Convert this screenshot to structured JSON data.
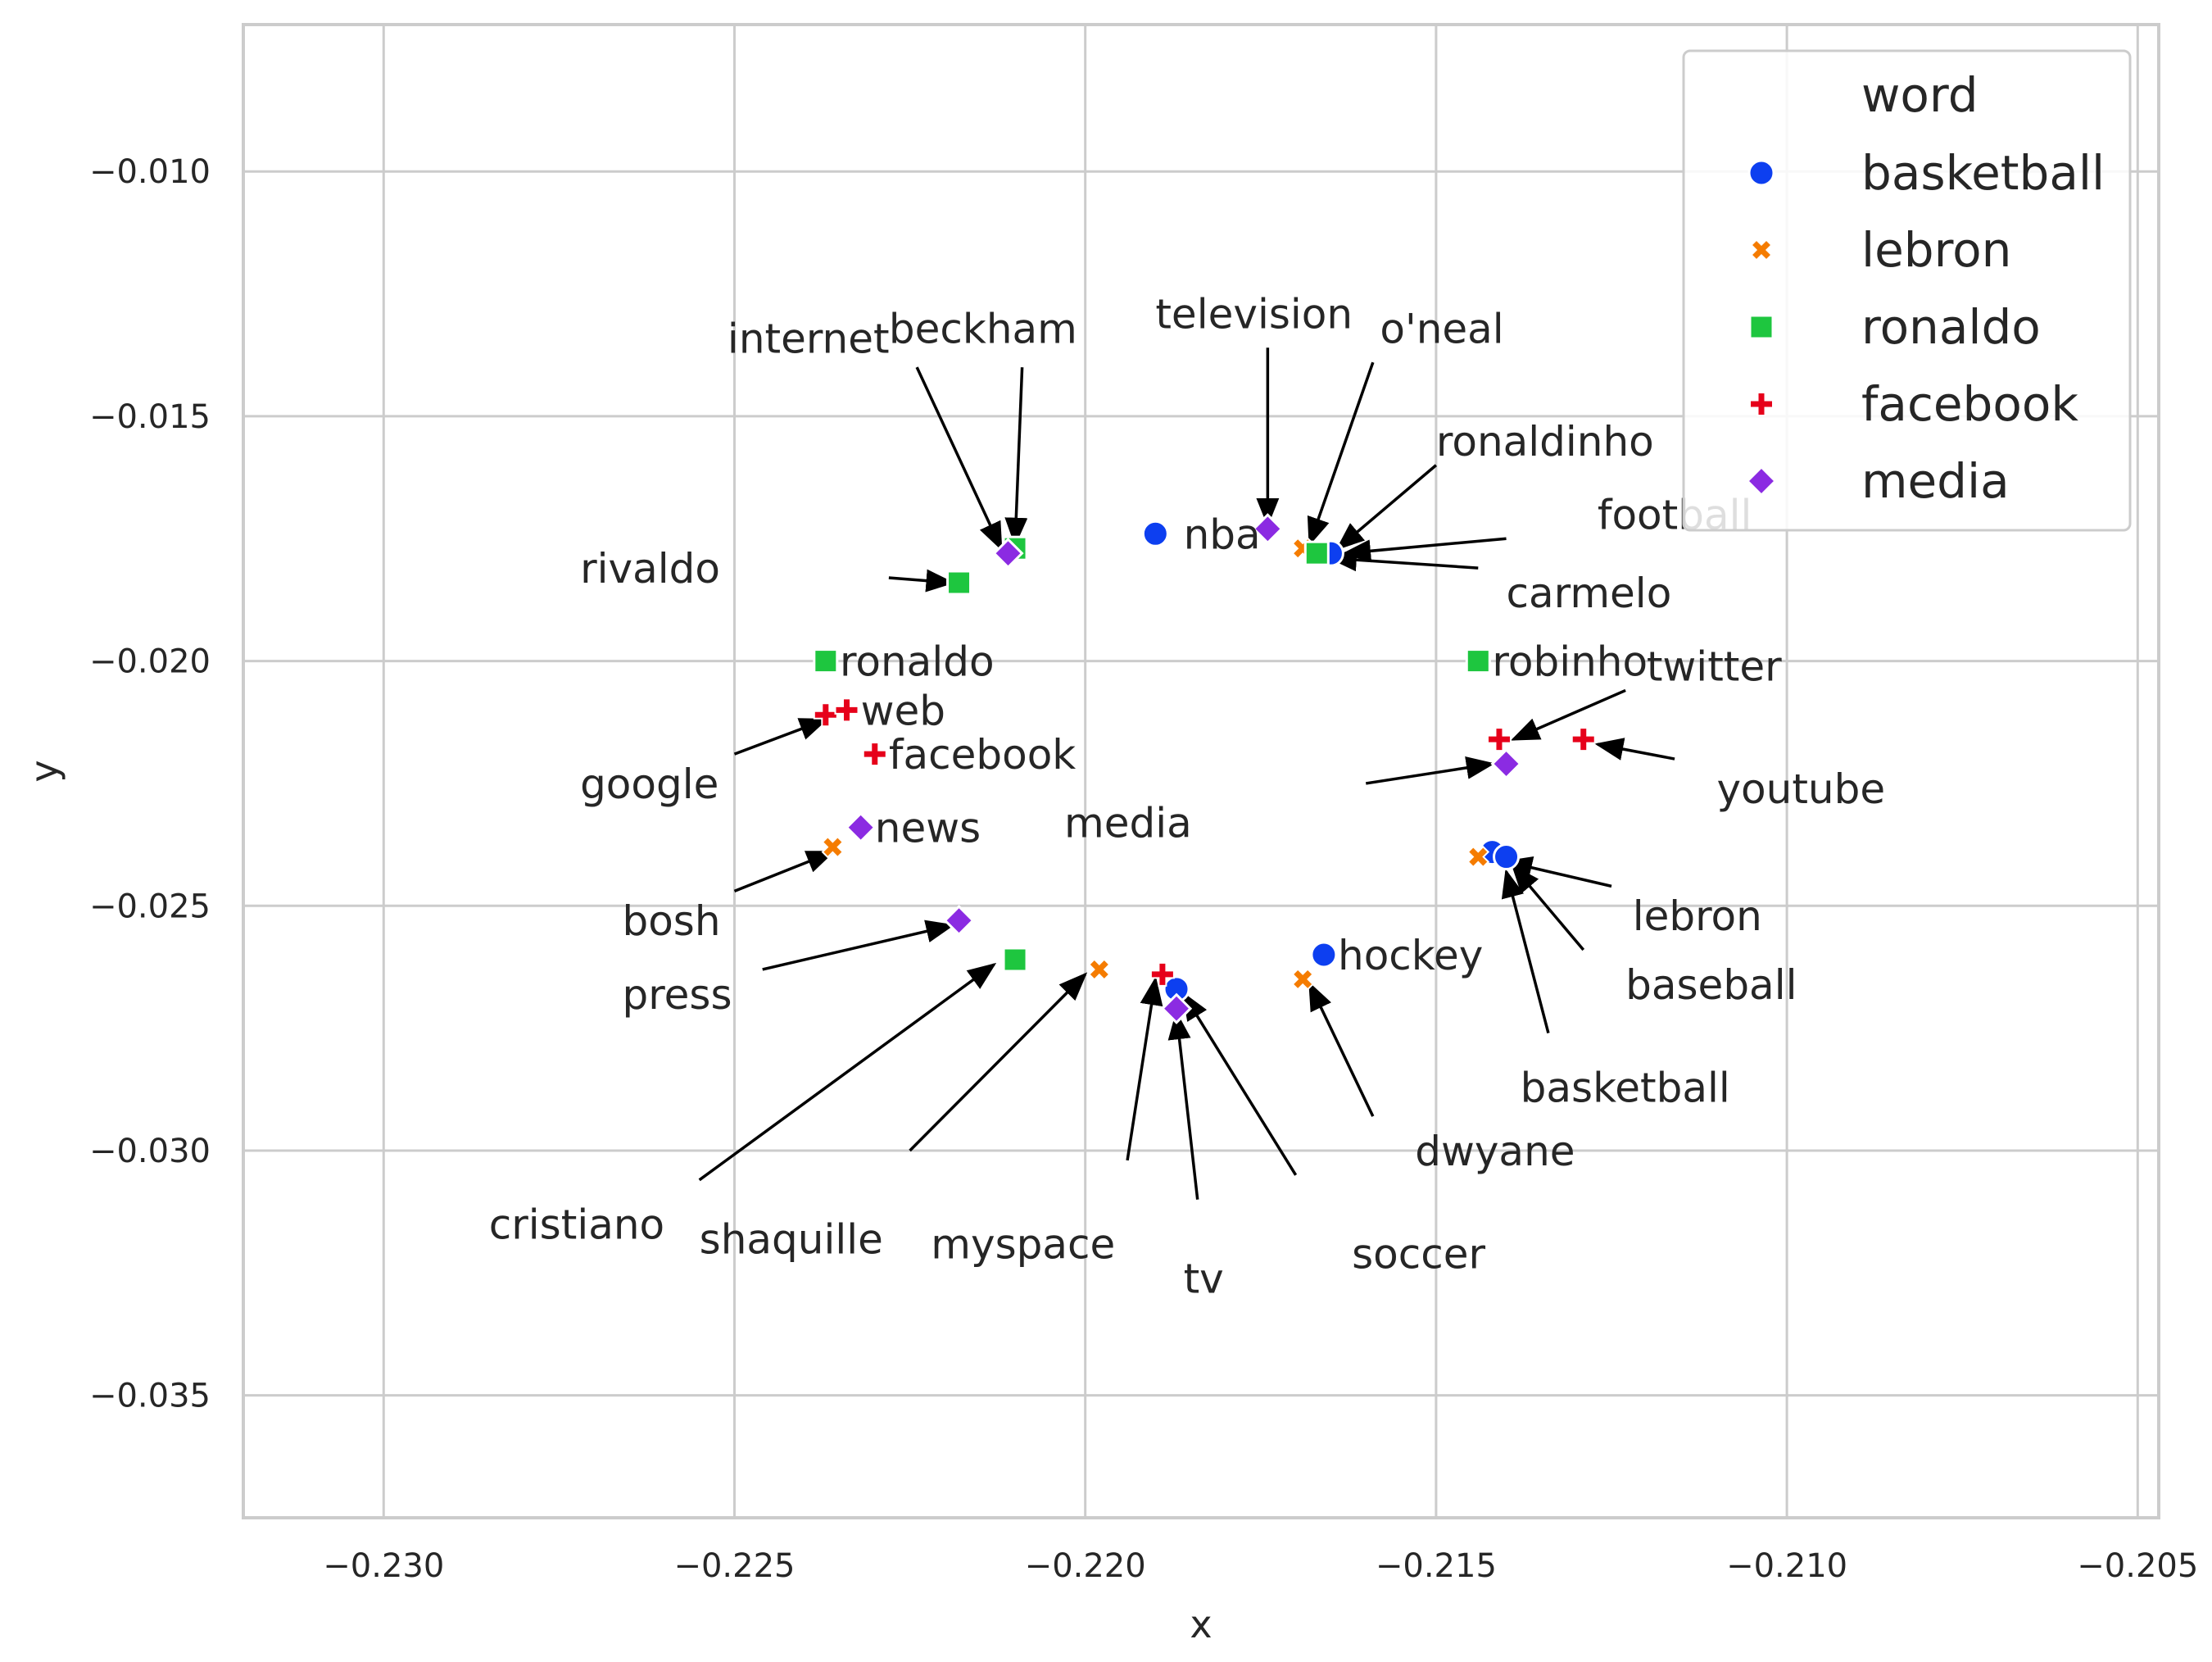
{
  "chart_data": {
    "type": "scatter",
    "title": "",
    "xlabel": "x",
    "ylabel": "y",
    "xlim": [
      -0.232,
      -0.2047
    ],
    "ylim": [
      -0.0375,
      -0.007
    ],
    "xticks": [
      -0.23,
      -0.225,
      -0.22,
      -0.215,
      -0.21,
      -0.205
    ],
    "xtick_labels": [
      "−0.230",
      "−0.225",
      "−0.220",
      "−0.215",
      "−0.210",
      "−0.205"
    ],
    "yticks": [
      -0.01,
      -0.015,
      -0.02,
      -0.025,
      -0.03,
      -0.035
    ],
    "ytick_labels": [
      "−0.010",
      "−0.015",
      "−0.020",
      "−0.025",
      "−0.030",
      "−0.035"
    ],
    "grid": true,
    "legend": {
      "title": "word",
      "position": "top-right",
      "entries": [
        {
          "label": "basketball",
          "marker": "circle",
          "color": "#0d3ff0"
        },
        {
          "label": "lebron",
          "marker": "x",
          "color": "#f57c00"
        },
        {
          "label": "ronaldo",
          "marker": "square",
          "color": "#1ec63f"
        },
        {
          "label": "facebook",
          "marker": "plus",
          "color": "#e6001a"
        },
        {
          "label": "media",
          "marker": "diamond",
          "color": "#8b2be2"
        }
      ]
    },
    "series": [
      {
        "name": "basketball",
        "marker": "circle",
        "color": "#0d3ff0",
        "points": [
          [
            -0.219,
            -0.0174
          ],
          [
            -0.2165,
            -0.0178
          ],
          [
            -0.2142,
            -0.0239
          ],
          [
            -0.214,
            -0.024
          ],
          [
            -0.2166,
            -0.026
          ],
          [
            -0.2187,
            -0.0267
          ]
        ]
      },
      {
        "name": "lebron",
        "marker": "x",
        "color": "#f57c00",
        "points": [
          [
            -0.2169,
            -0.0177
          ],
          [
            -0.2144,
            -0.024
          ],
          [
            -0.2169,
            -0.0265
          ],
          [
            -0.2198,
            -0.0263
          ],
          [
            -0.2236,
            -0.0238
          ]
        ]
      },
      {
        "name": "ronaldo",
        "marker": "square",
        "color": "#1ec63f",
        "points": [
          [
            -0.221,
            -0.0177
          ],
          [
            -0.2218,
            -0.0184
          ],
          [
            -0.2237,
            -0.02
          ],
          [
            -0.2144,
            -0.02
          ],
          [
            -0.2167,
            -0.0178
          ],
          [
            -0.221,
            -0.0261
          ]
        ]
      },
      {
        "name": "facebook",
        "marker": "plus",
        "color": "#e6001a",
        "points": [
          [
            -0.2237,
            -0.0211
          ],
          [
            -0.2234,
            -0.021
          ],
          [
            -0.223,
            -0.0219
          ],
          [
            -0.2141,
            -0.0216
          ],
          [
            -0.2129,
            -0.0216
          ],
          [
            -0.2189,
            -0.0264
          ]
        ]
      },
      {
        "name": "media",
        "marker": "diamond",
        "color": "#8b2be2",
        "points": [
          [
            -0.2211,
            -0.0178
          ],
          [
            -0.2174,
            -0.0173
          ],
          [
            -0.214,
            -0.0221
          ],
          [
            -0.2232,
            -0.0234
          ],
          [
            -0.2218,
            -0.0253
          ],
          [
            -0.2187,
            -0.0271
          ]
        ]
      }
    ],
    "annotations": [
      {
        "text": "nba",
        "text_at": [
          -0.2186,
          -0.0174
        ],
        "align": "start"
      },
      {
        "text": "ronaldo",
        "text_at": [
          -0.2235,
          -0.02
        ],
        "align": "start"
      },
      {
        "text": "web",
        "text_at": [
          -0.2232,
          -0.021
        ],
        "align": "start"
      },
      {
        "text": "facebook",
        "text_at": [
          -0.2228,
          -0.0219
        ],
        "align": "start"
      },
      {
        "text": "news",
        "text_at": [
          -0.223,
          -0.0234
        ],
        "align": "start"
      },
      {
        "text": "robinho",
        "text_at": [
          -0.2142,
          -0.02
        ],
        "align": "start"
      },
      {
        "text": "hockey",
        "text_at": [
          -0.2164,
          -0.026
        ],
        "align": "start"
      },
      {
        "text": "internet",
        "text_at": [
          -0.2251,
          -0.0134
        ],
        "align": "start",
        "arrow_from": [
          -0.2224,
          -0.014
        ],
        "arrow_to": [
          -0.2212,
          -0.0177
        ]
      },
      {
        "text": "beckham",
        "text_at": [
          -0.2228,
          -0.0132
        ],
        "align": "start",
        "arrow_from": [
          -0.2209,
          -0.014
        ],
        "arrow_to": [
          -0.221,
          -0.0176
        ]
      },
      {
        "text": "television",
        "text_at": [
          -0.219,
          -0.0129
        ],
        "align": "start",
        "arrow_from": [
          -0.2174,
          -0.0136
        ],
        "arrow_to": [
          -0.2174,
          -0.0172
        ]
      },
      {
        "text": "o'neal",
        "text_at": [
          -0.2158,
          -0.0132
        ],
        "align": "start",
        "arrow_from": [
          -0.2159,
          -0.0139
        ],
        "arrow_to": [
          -0.2168,
          -0.0176
        ]
      },
      {
        "text": "ronaldinho",
        "text_at": [
          -0.215,
          -0.0155
        ],
        "align": "start",
        "arrow_from": [
          -0.215,
          -0.016
        ],
        "arrow_to": [
          -0.2164,
          -0.0177
        ]
      },
      {
        "text": "football",
        "text_at": [
          -0.2127,
          -0.017
        ],
        "align": "start",
        "arrow_from": [
          -0.214,
          -0.0175
        ],
        "arrow_to": [
          -0.2163,
          -0.0178
        ]
      },
      {
        "text": "carmelo",
        "text_at": [
          -0.214,
          -0.0186
        ],
        "align": "start",
        "arrow_from": [
          -0.2144,
          -0.0181
        ],
        "arrow_to": [
          -0.2165,
          -0.0179
        ]
      },
      {
        "text": "rivaldo",
        "text_at": [
          -0.2272,
          -0.0181
        ],
        "align": "start",
        "arrow_from": [
          -0.2228,
          -0.0183
        ],
        "arrow_to": [
          -0.2219,
          -0.0184
        ]
      },
      {
        "text": "google",
        "text_at": [
          -0.2272,
          -0.0225
        ],
        "align": "start",
        "arrow_from": [
          -0.225,
          -0.0219
        ],
        "arrow_to": [
          -0.2237,
          -0.0212
        ]
      },
      {
        "text": "bosh",
        "text_at": [
          -0.2266,
          -0.0253
        ],
        "align": "start",
        "arrow_from": [
          -0.225,
          -0.0247
        ],
        "arrow_to": [
          -0.2236,
          -0.0239
        ]
      },
      {
        "text": "press",
        "text_at": [
          -0.2266,
          -0.0268
        ],
        "align": "start",
        "arrow_from": [
          -0.2246,
          -0.0263
        ],
        "arrow_to": [
          -0.2219,
          -0.0254
        ]
      },
      {
        "text": "cristiano",
        "text_at": [
          -0.2285,
          -0.0315
        ],
        "align": "start",
        "arrow_from": [
          -0.2255,
          -0.0306
        ],
        "arrow_to": [
          -0.2213,
          -0.0262
        ]
      },
      {
        "text": "shaquille",
        "text_at": [
          -0.2255,
          -0.0318
        ],
        "align": "start",
        "arrow_from": [
          -0.2225,
          -0.03
        ],
        "arrow_to": [
          -0.22,
          -0.0264
        ]
      },
      {
        "text": "myspace",
        "text_at": [
          -0.2222,
          -0.0319
        ],
        "align": "start",
        "arrow_from": [
          -0.2194,
          -0.0302
        ],
        "arrow_to": [
          -0.219,
          -0.0265
        ]
      },
      {
        "text": "tv",
        "text_at": [
          -0.2186,
          -0.0326
        ],
        "align": "start",
        "arrow_from": [
          -0.2184,
          -0.031
        ],
        "arrow_to": [
          -0.2187,
          -0.0272
        ]
      },
      {
        "text": "soccer",
        "text_at": [
          -0.2162,
          -0.0321
        ],
        "align": "start",
        "arrow_from": [
          -0.217,
          -0.0305
        ],
        "arrow_to": [
          -0.2186,
          -0.0268
        ]
      },
      {
        "text": "dwyane",
        "text_at": [
          -0.2153,
          -0.03
        ],
        "align": "start",
        "arrow_from": [
          -0.2159,
          -0.0293
        ],
        "arrow_to": [
          -0.2168,
          -0.0266
        ]
      },
      {
        "text": "twitter",
        "text_at": [
          -0.212,
          -0.0201
        ],
        "align": "start",
        "arrow_from": [
          -0.2123,
          -0.0206
        ],
        "arrow_to": [
          -0.2139,
          -0.0216
        ]
      },
      {
        "text": "youtube",
        "text_at": [
          -0.211,
          -0.0226
        ],
        "align": "start",
        "arrow_from": [
          -0.2116,
          -0.022
        ],
        "arrow_to": [
          -0.2127,
          -0.0217
        ]
      },
      {
        "text": "media",
        "text_at": [
          -0.2203,
          -0.0233
        ],
        "align": "start",
        "arrow_from": [
          -0.216,
          -0.0225
        ],
        "arrow_to": [
          -0.2142,
          -0.0221
        ]
      },
      {
        "text": "lebron",
        "text_at": [
          -0.2122,
          -0.0252
        ],
        "align": "start",
        "arrow_from": [
          -0.2125,
          -0.0246
        ],
        "arrow_to": [
          -0.214,
          -0.0241
        ]
      },
      {
        "text": "baseball",
        "text_at": [
          -0.2123,
          -0.0266
        ],
        "align": "start",
        "arrow_from": [
          -0.2129,
          -0.0259
        ],
        "arrow_to": [
          -0.2139,
          -0.0242
        ]
      },
      {
        "text": "basketball",
        "text_at": [
          -0.2138,
          -0.0287
        ],
        "align": "start",
        "arrow_from": [
          -0.2134,
          -0.0276
        ],
        "arrow_to": [
          -0.214,
          -0.0243
        ]
      }
    ]
  }
}
